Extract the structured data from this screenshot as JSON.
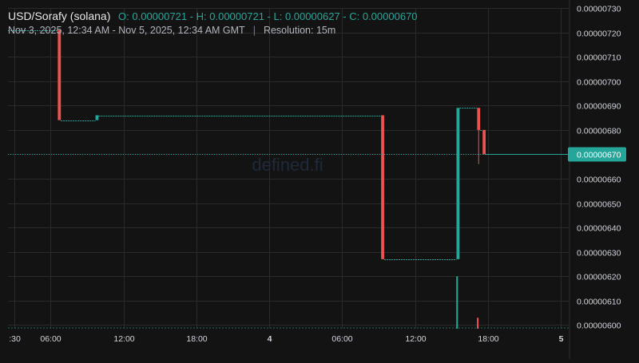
{
  "header": {
    "symbol": "USD/Sorafy (solana)",
    "ohlc": {
      "open_label": "O:",
      "open": "0.00000721",
      "high_label": "H:",
      "high": "0.00000721",
      "low_label": "L:",
      "low": "0.00000627",
      "close_label": "C:",
      "close": "0.00000670"
    },
    "range": "Nov 3, 2025, 12:34 AM - Nov 5, 2025, 12:34 AM GMT",
    "separator": "|",
    "resolution": "Resolution: 15m"
  },
  "watermark": "defined.fi",
  "colors": {
    "up": "#26a69a",
    "down": "#ef5350",
    "background": "#131313",
    "grid": "#2a2a2a",
    "text": "#d1d4dc"
  },
  "chart_data": {
    "type": "candlestick",
    "y_ticks": [
      "0.00000600",
      "0.00000610",
      "0.00000620",
      "0.00000630",
      "0.00000640",
      "0.00000650",
      "0.00000660",
      "0.00000670",
      "0.00000680",
      "0.00000690",
      "0.00000700",
      "0.00000710",
      "0.00000720",
      "0.00000730"
    ],
    "x_ticks": [
      {
        "t": 3.0,
        "label": ":30",
        "bold": false
      },
      {
        "t": 6.0,
        "label": "06:00",
        "bold": false
      },
      {
        "t": 12.0,
        "label": "12:00",
        "bold": false
      },
      {
        "t": 18.0,
        "label": "18:00",
        "bold": false
      },
      {
        "t": 24.0,
        "label": "4",
        "bold": true
      },
      {
        "t": 30.0,
        "label": "06:00",
        "bold": false
      },
      {
        "t": 36.0,
        "label": "12:00",
        "bold": false
      },
      {
        "t": 42.0,
        "label": "18:00",
        "bold": false
      },
      {
        "t": 48.0,
        "label": "5",
        "bold": true
      }
    ],
    "x_range_hours": [
      2.5,
      48.7
    ],
    "y_range": [
      5.985e-06,
      7.3e-06
    ],
    "last_price": "0.00000670",
    "last_price_value": 6.7e-06,
    "candle_width_hours": 0.25,
    "segments": [
      {
        "t0": 2.5,
        "t1": 6.6,
        "o": 7.21e-06,
        "c": 7.21e-06
      },
      {
        "t0": 6.6,
        "t1": 6.85,
        "o": 7.21e-06,
        "c": 6.84e-06
      },
      {
        "t0": 6.85,
        "t1": 9.7,
        "o": 6.84e-06,
        "c": 6.84e-06
      },
      {
        "t0": 9.7,
        "t1": 9.95,
        "o": 6.84e-06,
        "c": 6.86e-06
      },
      {
        "t0": 9.95,
        "t1": 33.2,
        "o": 6.86e-06,
        "c": 6.86e-06
      },
      {
        "t0": 33.2,
        "t1": 33.45,
        "o": 6.86e-06,
        "c": 6.27e-06
      },
      {
        "t0": 33.45,
        "t1": 39.4,
        "o": 6.27e-06,
        "c": 6.27e-06
      },
      {
        "t0": 39.4,
        "t1": 39.65,
        "o": 6.27e-06,
        "c": 6.89e-06
      },
      {
        "t0": 39.65,
        "t1": 41.1,
        "o": 6.89e-06,
        "c": 6.89e-06
      },
      {
        "t0": 41.1,
        "t1": 41.35,
        "o": 6.89e-06,
        "c": 6.8e-06,
        "h": 6.89e-06,
        "l": 6.66e-06
      },
      {
        "t0": 41.35,
        "t1": 41.55,
        "o": 6.8e-06,
        "c": 6.8e-06
      },
      {
        "t0": 41.55,
        "t1": 41.8,
        "o": 6.8e-06,
        "c": 6.7e-06
      },
      {
        "t0": 41.8,
        "t1": 48.65,
        "o": 6.7e-06,
        "c": 6.7e-06
      }
    ],
    "volume": [
      {
        "t": 39.45,
        "v": 6.2e-06,
        "up": true
      },
      {
        "t": 41.15,
        "v": 6.03e-06,
        "up": false
      }
    ]
  }
}
